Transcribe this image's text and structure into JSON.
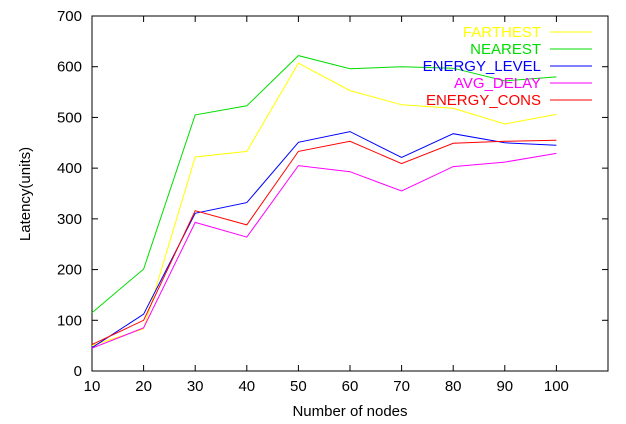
{
  "chart_data": {
    "type": "line",
    "title": "",
    "xlabel": "Number of nodes",
    "ylabel": "Latency(units)",
    "xlim": [
      10,
      110
    ],
    "ylim": [
      0,
      700
    ],
    "x_ticks": [
      10,
      20,
      30,
      40,
      50,
      60,
      70,
      80,
      90,
      100
    ],
    "y_ticks": [
      0,
      100,
      200,
      300,
      400,
      500,
      600,
      700
    ],
    "grid": false,
    "legend_position": "top-right",
    "x": [
      10,
      20,
      30,
      40,
      50,
      60,
      70,
      80,
      90,
      100
    ],
    "series": [
      {
        "name": "FARTHEST",
        "color": "#ffff00",
        "values": [
          50,
          83,
          422,
          433,
          607,
          553,
          525,
          518,
          487,
          506
        ]
      },
      {
        "name": "NEAREST",
        "color": "#00dd00",
        "values": [
          115,
          201,
          505,
          523,
          622,
          596,
          600,
          597,
          572,
          580
        ]
      },
      {
        "name": "ENERGY_LEVEL",
        "color": "#0000ff",
        "values": [
          46,
          112,
          311,
          332,
          451,
          472,
          421,
          468,
          450,
          445
        ]
      },
      {
        "name": "AVG_DELAY",
        "color": "#ff00ff",
        "values": [
          45,
          85,
          293,
          264,
          405,
          393,
          355,
          403,
          412,
          429
        ]
      },
      {
        "name": "ENERGY_CONS",
        "color": "#ff0000",
        "values": [
          52,
          100,
          316,
          288,
          433,
          453,
          409,
          449,
          453,
          455
        ]
      }
    ]
  }
}
